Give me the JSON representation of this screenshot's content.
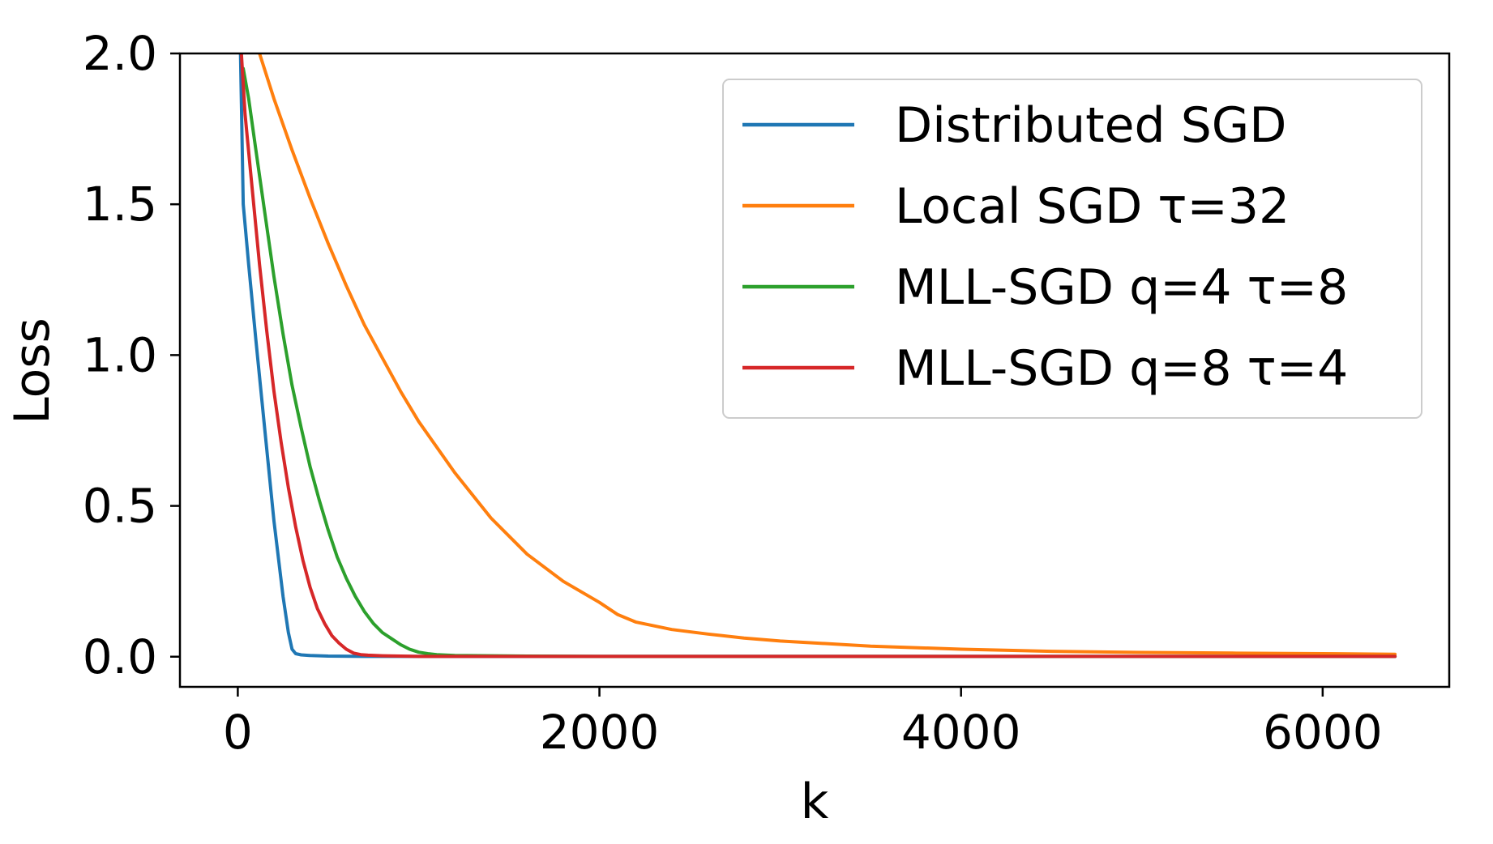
{
  "chart_data": {
    "type": "line",
    "title": "",
    "xlabel": "k",
    "ylabel": "Loss",
    "xlim": [
      -320,
      6700
    ],
    "ylim": [
      -0.1,
      2.0
    ],
    "xticks": [
      0,
      2000,
      4000,
      6000
    ],
    "xtick_labels": [
      "0",
      "2000",
      "4000",
      "6000"
    ],
    "yticks": [
      0.0,
      0.5,
      1.0,
      1.5,
      2.0
    ],
    "ytick_labels": [
      "0.0",
      "0.5",
      "1.0",
      "1.5",
      "2.0"
    ],
    "grid": false,
    "legend_position": "top-right",
    "series": [
      {
        "name": "Distributed SGD",
        "color": "#1f77b4",
        "x": [
          15,
          30,
          60,
          100,
          150,
          200,
          250,
          280,
          300,
          320,
          350,
          400,
          500,
          700,
          1000,
          2000,
          4000,
          6400
        ],
        "y": [
          2.0,
          1.5,
          1.3,
          1.05,
          0.75,
          0.45,
          0.2,
          0.08,
          0.025,
          0.01,
          0.006,
          0.004,
          0.002,
          0.001,
          0.001,
          0.001,
          0.001,
          0.001
        ]
      },
      {
        "name": "Local SGD τ=32",
        "color": "#ff7f0e",
        "x": [
          120,
          200,
          300,
          400,
          500,
          600,
          700,
          800,
          900,
          1000,
          1200,
          1400,
          1600,
          1800,
          2000,
          2100,
          2200,
          2400,
          2600,
          2800,
          3000,
          3500,
          4000,
          4500,
          5000,
          5500,
          6000,
          6400
        ],
        "y": [
          2.0,
          1.85,
          1.68,
          1.52,
          1.37,
          1.23,
          1.1,
          0.99,
          0.88,
          0.78,
          0.61,
          0.46,
          0.34,
          0.25,
          0.18,
          0.14,
          0.115,
          0.09,
          0.075,
          0.062,
          0.052,
          0.035,
          0.025,
          0.018,
          0.014,
          0.012,
          0.01,
          0.008
        ]
      },
      {
        "name": "MLL-SGD q=4 τ=8",
        "color": "#2ca02c",
        "x": [
          30,
          60,
          100,
          150,
          200,
          250,
          300,
          350,
          400,
          450,
          500,
          550,
          600,
          650,
          700,
          750,
          800,
          850,
          900,
          950,
          1000,
          1050,
          1100,
          1200,
          1400,
          1600,
          2000,
          3000,
          4000,
          6400
        ],
        "y": [
          1.95,
          1.85,
          1.68,
          1.47,
          1.26,
          1.07,
          0.9,
          0.76,
          0.63,
          0.52,
          0.42,
          0.33,
          0.26,
          0.2,
          0.15,
          0.11,
          0.08,
          0.06,
          0.04,
          0.025,
          0.015,
          0.01,
          0.007,
          0.004,
          0.003,
          0.002,
          0.001,
          0.001,
          0.001,
          0.001
        ]
      },
      {
        "name": "MLL-SGD q=8 τ=4",
        "color": "#d62728",
        "x": [
          20,
          40,
          80,
          120,
          160,
          200,
          240,
          280,
          320,
          360,
          400,
          440,
          480,
          520,
          560,
          600,
          640,
          680,
          720,
          800,
          900,
          1000,
          1200,
          1600,
          2000,
          3000,
          4000,
          6400
        ],
        "y": [
          2.0,
          1.8,
          1.55,
          1.3,
          1.08,
          0.88,
          0.71,
          0.56,
          0.43,
          0.32,
          0.23,
          0.16,
          0.11,
          0.07,
          0.045,
          0.025,
          0.012,
          0.007,
          0.005,
          0.003,
          0.002,
          0.001,
          0.001,
          0.001,
          0.001,
          0.001,
          0.001,
          0.001
        ]
      }
    ]
  }
}
